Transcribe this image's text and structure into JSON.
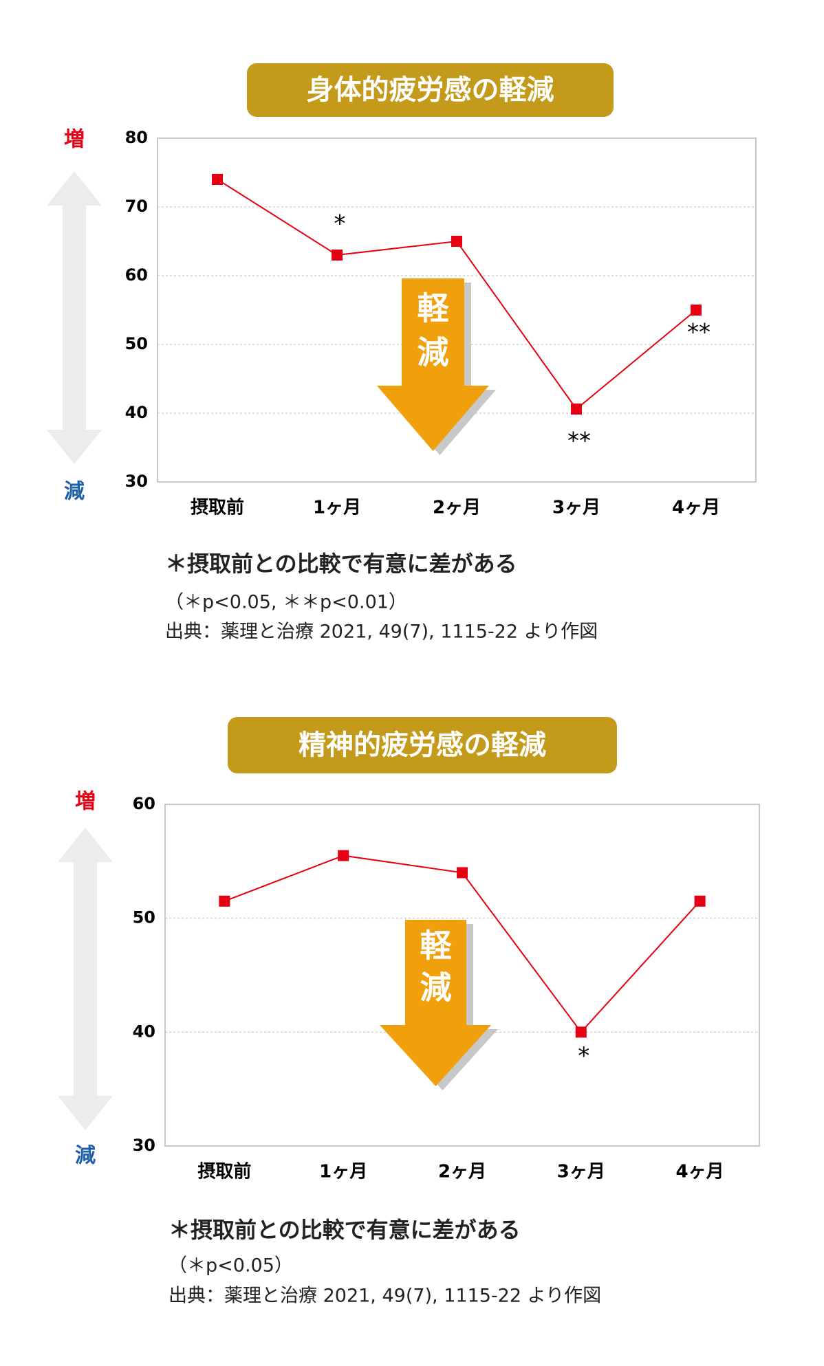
{
  "chart_data": [
    {
      "type": "line",
      "title": "身体的疲労感の軽減",
      "categories": [
        "摂取前",
        "1ヶ月",
        "2ヶ月",
        "3ヶ月",
        "4ヶ月"
      ],
      "values": [
        74,
        63,
        65,
        40.6,
        55
      ],
      "color": "#e60012",
      "significance": [
        null,
        "*",
        null,
        "**",
        "**"
      ],
      "ylim": [
        30,
        80
      ],
      "yticks": [
        30,
        40,
        50,
        60,
        70,
        80
      ],
      "grid": true,
      "arrow_label": [
        "軽",
        "減"
      ],
      "axis_top": "増",
      "axis_bottom": "減",
      "notes": [
        "＊摂取前との比較で有意に差がある",
        "（＊p<0.05, ＊＊p<0.01）",
        "出典：薬理と治療 2021, 49(7), 1115-22 より作図"
      ]
    },
    {
      "type": "line",
      "title": "精神的疲労感の軽減",
      "categories": [
        "摂取前",
        "1ヶ月",
        "2ヶ月",
        "3ヶ月",
        "4ヶ月"
      ],
      "values": [
        51.5,
        55.5,
        54,
        40,
        51.5
      ],
      "color": "#e60012",
      "significance": [
        null,
        null,
        null,
        "*",
        null
      ],
      "ylim": [
        30,
        60
      ],
      "yticks": [
        30,
        40,
        50,
        60
      ],
      "grid": true,
      "arrow_label": [
        "軽",
        "減"
      ],
      "axis_top": "増",
      "axis_bottom": "減",
      "notes": [
        "＊摂取前との比較で有意に差がある",
        "（＊p<0.05）",
        "出典：薬理と治療 2021, 49(7), 1115-22 より作図"
      ]
    }
  ]
}
